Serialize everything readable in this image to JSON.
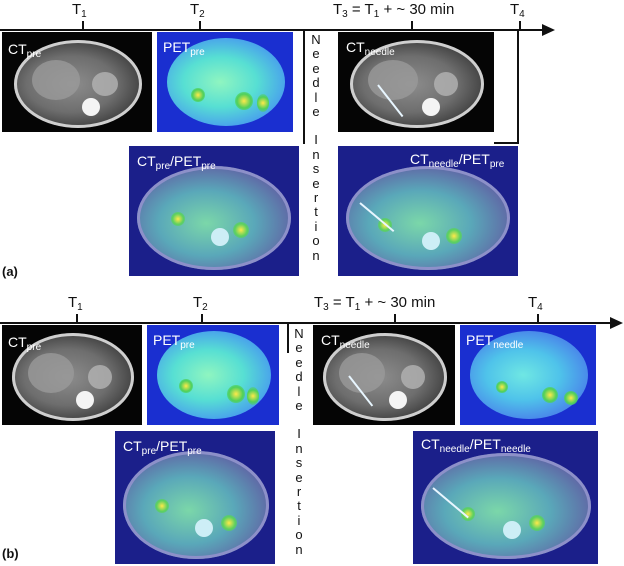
{
  "panel_a": {
    "label": "(a)",
    "timeline": {
      "t1": "T",
      "t1_sub": "1",
      "t2": "T",
      "t2_sub": "2",
      "t3_a": "T",
      "t3_sub": "3",
      "t3_b": " = T",
      "t3_sub2": "1",
      "t3_c": " + ~ 30 min",
      "t4": "T",
      "t4_sub": "4"
    },
    "images": {
      "ct_pre": {
        "main": "CT",
        "sub": "pre"
      },
      "pet_pre": {
        "main": "PET",
        "sub": "pre"
      },
      "ct_needle": {
        "main": "CT",
        "sub": "needle"
      },
      "fused_pre": {
        "a": "CT",
        "a_sub": "pre",
        "slash": "/PET",
        "b_sub": "pre"
      },
      "fused_needle": {
        "a": "CT",
        "a_sub": "needle",
        "slash": "/PET",
        "b_sub": "pre"
      }
    },
    "needle_word": [
      "N",
      "e",
      "e",
      "d",
      "l",
      "e"
    ],
    "insertion_word": [
      "I",
      "n",
      "s",
      "e",
      "r",
      "t",
      "i",
      "o",
      "n"
    ]
  },
  "panel_b": {
    "label": "(b)",
    "timeline": {
      "t1": "T",
      "t1_sub": "1",
      "t2": "T",
      "t2_sub": "2",
      "t3_a": "T",
      "t3_sub": "3",
      "t3_b": " = T",
      "t3_sub2": "1",
      "t3_c": " + ~ 30 min",
      "t4": "T",
      "t4_sub": "4"
    },
    "images": {
      "ct_pre": {
        "main": "CT",
        "sub": "pre"
      },
      "pet_pre": {
        "main": "PET",
        "sub": "pre"
      },
      "ct_needle": {
        "main": "CT",
        "sub": "needle"
      },
      "pet_needle": {
        "main": "PET",
        "sub": "needle"
      },
      "fused_pre": {
        "a": "CT",
        "a_sub": "pre",
        "slash": "/PET",
        "b_sub": "pre"
      },
      "fused_needle": {
        "a": "CT",
        "a_sub": "needle",
        "slash": "/PET",
        "b_sub": "needle"
      }
    },
    "needle_word": [
      "N",
      "e",
      "e",
      "d",
      "l",
      "e"
    ],
    "insertion_word": [
      "I",
      "n",
      "s",
      "e",
      "r",
      "t",
      "i",
      "o",
      "n"
    ]
  },
  "colors": {
    "line": "#111111",
    "pet_background": "#1a2fd0",
    "fused_background": "#1b1f8a"
  }
}
